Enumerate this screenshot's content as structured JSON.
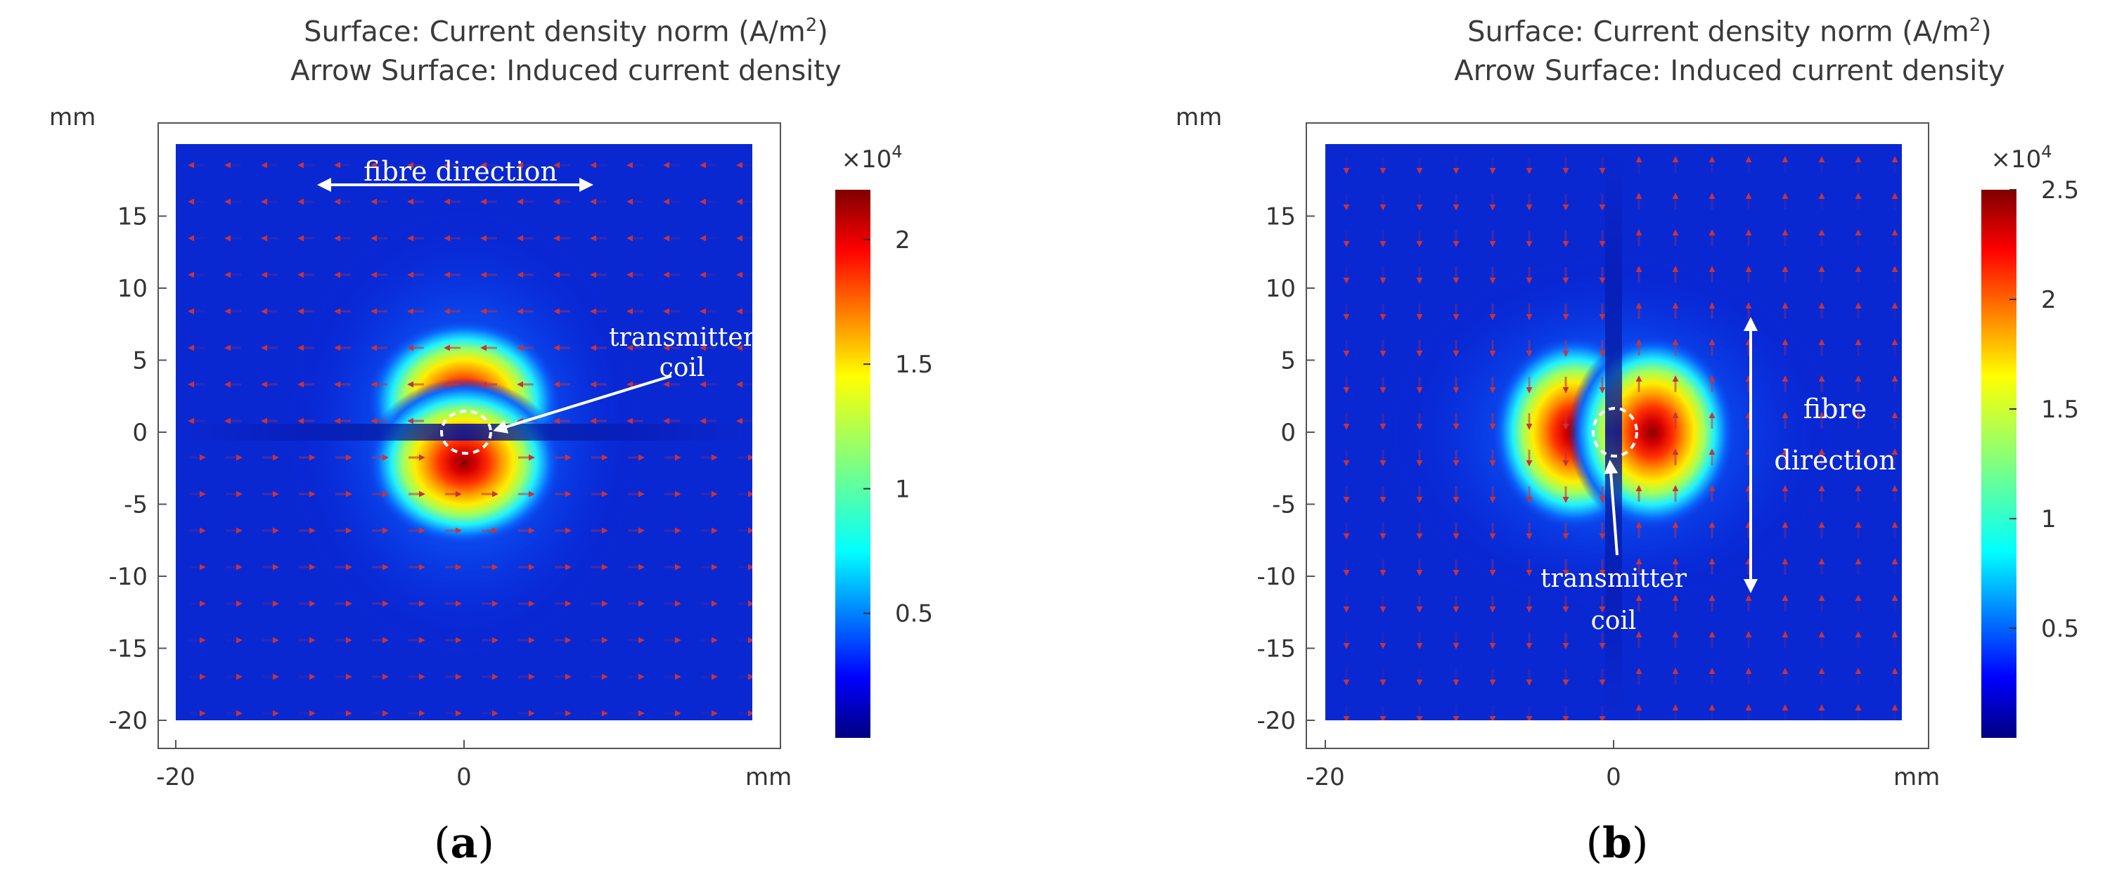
{
  "chart_data": [
    {
      "type": "heatmap",
      "panel_label": "a",
      "title_line1_prefix": "Surface: Current density norm (A/m",
      "title_line1_sup": "2",
      "title_line1_suffix": ")",
      "title_line2": "Arrow Surface: Induced current density",
      "xlabel": "mm",
      "ylabel": "mm",
      "xlim": [
        -20,
        20
      ],
      "ylim": [
        -20,
        20
      ],
      "xticks": [
        -20,
        0
      ],
      "yticks": [
        15,
        10,
        5,
        0,
        -5,
        -10,
        -15,
        -20
      ],
      "colorbar": {
        "multiplier_base": "×10",
        "multiplier_exp": "4",
        "ticks": [
          2,
          1.5,
          1,
          0.5
        ],
        "range": [
          0,
          2.2
        ]
      },
      "annotations": {
        "fibre": "fibre direction",
        "coil_line1": "transmitter",
        "coil_line2": "coil"
      }
    },
    {
      "type": "heatmap",
      "panel_label": "b",
      "title_line1_prefix": "Surface: Current density norm (A/m",
      "title_line1_sup": "2",
      "title_line1_suffix": ")",
      "title_line2": "Arrow Surface: Induced current density",
      "xlabel": "mm",
      "ylabel": "mm",
      "xlim": [
        -20,
        20
      ],
      "ylim": [
        -20,
        20
      ],
      "xticks": [
        -20,
        0
      ],
      "yticks": [
        15,
        10,
        5,
        0,
        -5,
        -10,
        -15,
        -20
      ],
      "colorbar": {
        "multiplier_base": "×10",
        "multiplier_exp": "4",
        "ticks": [
          2.5,
          2,
          1.5,
          1,
          0.5
        ],
        "range": [
          0,
          2.5
        ]
      },
      "annotations": {
        "fibre_line1": "fibre",
        "fibre_line2": "direction",
        "coil_line1": "transmitter",
        "coil_line2": "coil"
      }
    }
  ]
}
